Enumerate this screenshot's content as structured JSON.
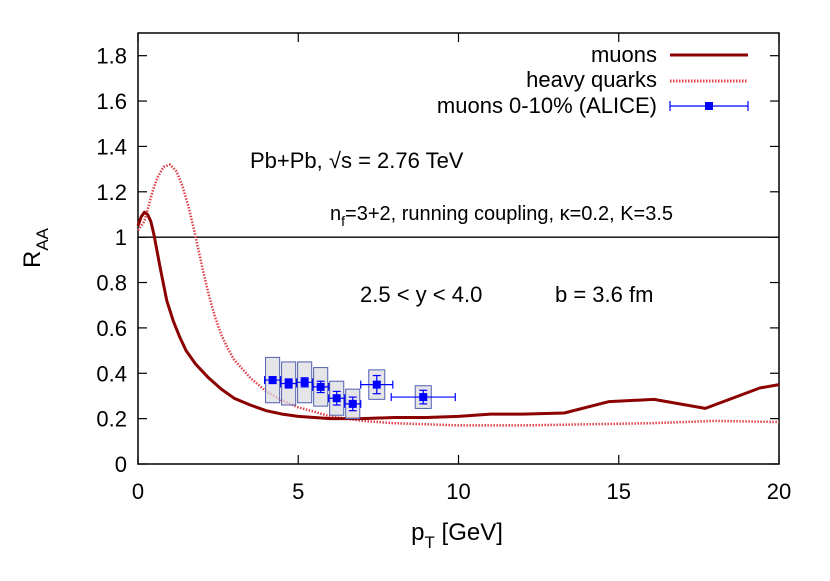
{
  "chart_data": {
    "type": "line",
    "xlabel": "p",
    "xlabel_sub": "T",
    "xlabel_unit": " [GeV]",
    "ylabel": "R",
    "ylabel_sub": "AA",
    "xlim": [
      0,
      20
    ],
    "ylim": [
      0,
      1.9
    ],
    "x_ticks": [
      0,
      5,
      10,
      15,
      20
    ],
    "x_tick_labels": [
      "0",
      "5",
      "10",
      "15",
      "20"
    ],
    "y_ticks": [
      0,
      0.2,
      0.4,
      0.6,
      0.8,
      1,
      1.2,
      1.4,
      1.6,
      1.8
    ],
    "y_tick_labels": [
      "0",
      "0.2",
      "0.4",
      "0.6",
      "0.8",
      "1",
      "1.2",
      "1.4",
      "1.6",
      "1.8"
    ],
    "grid": false,
    "legend_position": "top-right",
    "reference_line": {
      "y": 1,
      "color": "#000000"
    },
    "series": [
      {
        "name": "muons",
        "style": "solid",
        "color": "#8b0000",
        "x": [
          0.0,
          0.1,
          0.2,
          0.3,
          0.4,
          0.5,
          0.7,
          0.9,
          1.1,
          1.3,
          1.5,
          1.8,
          2.2,
          2.6,
          3.0,
          3.5,
          4.0,
          4.5,
          5.0,
          5.5,
          6.0,
          7.0,
          8.0,
          9.0,
          10.0,
          11.0,
          12.0,
          13.3,
          14.7,
          16.1,
          17.7,
          19.4,
          20.0
        ],
        "y": [
          1.05,
          1.09,
          1.11,
          1.1,
          1.07,
          1.01,
          0.86,
          0.72,
          0.63,
          0.56,
          0.5,
          0.44,
          0.38,
          0.33,
          0.29,
          0.26,
          0.235,
          0.22,
          0.21,
          0.205,
          0.2,
          0.2,
          0.205,
          0.205,
          0.21,
          0.22,
          0.22,
          0.225,
          0.275,
          0.285,
          0.245,
          0.335,
          0.35
        ]
      },
      {
        "name": "heavy quarks",
        "style": "dotted",
        "color": "#e0404a",
        "x": [
          0.0,
          0.1,
          0.2,
          0.3,
          0.45,
          0.6,
          0.8,
          1.0,
          1.2,
          1.4,
          1.6,
          1.8,
          2.0,
          2.2,
          2.4,
          2.6,
          2.8,
          3.0,
          3.5,
          4.0,
          4.5,
          5.0,
          5.5,
          6.0,
          7.0,
          8.0,
          9.0,
          10.0,
          12.0,
          14.0,
          16.0,
          18.0,
          20.0
        ],
        "y": [
          1.03,
          1.05,
          1.07,
          1.12,
          1.2,
          1.26,
          1.31,
          1.32,
          1.29,
          1.22,
          1.12,
          1.0,
          0.87,
          0.75,
          0.65,
          0.57,
          0.51,
          0.46,
          0.38,
          0.32,
          0.28,
          0.25,
          0.23,
          0.21,
          0.19,
          0.18,
          0.175,
          0.17,
          0.17,
          0.175,
          0.18,
          0.19,
          0.185
        ]
      },
      {
        "name": "muons 0-10% (ALICE)",
        "style": "points",
        "color": "#0000ff",
        "x": [
          4.2,
          4.7,
          5.2,
          5.7,
          6.2,
          6.7,
          7.45,
          8.9
        ],
        "y": [
          0.37,
          0.355,
          0.36,
          0.34,
          0.29,
          0.265,
          0.35,
          0.295
        ],
        "xerr": [
          0.25,
          0.25,
          0.25,
          0.25,
          0.25,
          0.25,
          0.5,
          1.0
        ],
        "yerr": [
          0.015,
          0.02,
          0.02,
          0.025,
          0.03,
          0.03,
          0.04,
          0.03
        ],
        "syst_box_halfwidth": [
          0.22,
          0.22,
          0.22,
          0.22,
          0.22,
          0.22,
          0.25,
          0.25
        ],
        "syst_err": [
          0.1,
          0.095,
          0.09,
          0.085,
          0.075,
          0.065,
          0.065,
          0.05
        ]
      }
    ],
    "annotations": {
      "system": "Pb+Pb, √s = 2.76 TeV",
      "params_prefix": "n",
      "params_sub": "f",
      "params_rest": "=3+2, running coupling, κ=0.2, K=3.5",
      "rapidity": "2.5 < y < 4.0",
      "impact": "b = 3.6 fm"
    }
  }
}
